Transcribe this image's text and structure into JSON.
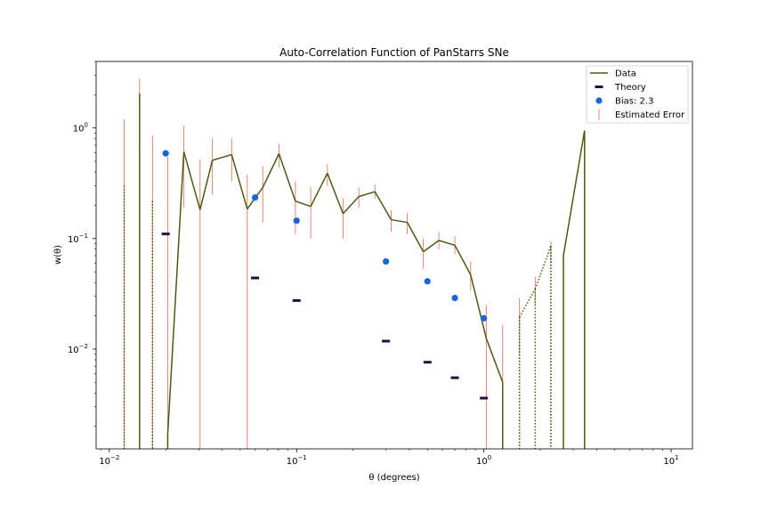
{
  "chart_data": {
    "type": "line",
    "title": "Auto-Correlation Function of PanStarrs SNe",
    "xlabel": "θ (degrees)",
    "ylabel": "w(θ)",
    "xscale": "log",
    "yscale": "log",
    "xlim": [
      0.0085,
      13.0
    ],
    "ylim": [
      0.00125,
      4.0
    ],
    "x_ticks": [
      {
        "value": 0.01,
        "base": "10",
        "exp": "−2"
      },
      {
        "value": 0.1,
        "base": "10",
        "exp": "−1"
      },
      {
        "value": 1,
        "base": "10",
        "exp": "0"
      },
      {
        "value": 10,
        "base": "10",
        "exp": "1"
      }
    ],
    "y_ticks": [
      {
        "value": 0.01,
        "base": "10",
        "exp": "−2"
      },
      {
        "value": 0.1,
        "base": "10",
        "exp": "−1"
      },
      {
        "value": 1,
        "base": "10",
        "exp": "0"
      }
    ],
    "legend": {
      "position": "top-right",
      "entries": [
        {
          "label": "Data",
          "marker": "line",
          "color": "#4a5a12"
        },
        {
          "label": "Theory",
          "marker": "dash",
          "color": "#2a0840"
        },
        {
          "label": "Bias: 2.3",
          "marker": "circle",
          "color": "#1565e0"
        },
        {
          "label": "Estimated Error",
          "marker": "vline",
          "color": "#e07868"
        }
      ]
    },
    "series": [
      {
        "name": "Data",
        "color": "#4a5a12",
        "points": [
          {
            "x": 0.012,
            "y": 0.3,
            "style": "dotted"
          },
          {
            "x": 0.0145,
            "y": 2.05,
            "style": "solid"
          },
          {
            "x": 0.017,
            "y": 0.22,
            "style": "dotted"
          },
          {
            "x": 0.0205,
            "y": 0.0017
          },
          {
            "x": 0.025,
            "y": 0.61
          },
          {
            "x": 0.0305,
            "y": 0.182
          },
          {
            "x": 0.0355,
            "y": 0.51
          },
          {
            "x": 0.045,
            "y": 0.575
          },
          {
            "x": 0.0545,
            "y": 0.185
          },
          {
            "x": 0.066,
            "y": 0.29
          },
          {
            "x": 0.0805,
            "y": 0.585
          },
          {
            "x": 0.0985,
            "y": 0.218
          },
          {
            "x": 0.119,
            "y": 0.195
          },
          {
            "x": 0.146,
            "y": 0.39
          },
          {
            "x": 0.177,
            "y": 0.168
          },
          {
            "x": 0.215,
            "y": 0.24
          },
          {
            "x": 0.262,
            "y": 0.265
          },
          {
            "x": 0.32,
            "y": 0.148
          },
          {
            "x": 0.39,
            "y": 0.14
          },
          {
            "x": 0.475,
            "y": 0.076
          },
          {
            "x": 0.575,
            "y": 0.096
          },
          {
            "x": 0.7,
            "y": 0.087
          },
          {
            "x": 0.85,
            "y": 0.047
          },
          {
            "x": 1.03,
            "y": 0.0125
          },
          {
            "x": 1.26,
            "y": 0.005
          },
          {
            "x": 1.55,
            "y": 0.0195,
            "style": "dotted"
          },
          {
            "x": 1.88,
            "y": 0.035,
            "style": "dotted"
          },
          {
            "x": 2.28,
            "y": 0.086,
            "style": "dotted"
          },
          {
            "x": 2.66,
            "y": 0.07
          },
          {
            "x": 3.45,
            "y": 0.95
          }
        ]
      },
      {
        "name": "Theory",
        "color": "#2a0840",
        "points": [
          {
            "x": 0.02,
            "y": 0.11
          },
          {
            "x": 0.06,
            "y": 0.044
          },
          {
            "x": 0.1,
            "y": 0.0275
          },
          {
            "x": 0.3,
            "y": 0.0118
          },
          {
            "x": 0.5,
            "y": 0.0076
          },
          {
            "x": 0.7,
            "y": 0.0055
          },
          {
            "x": 1.0,
            "y": 0.0036
          }
        ]
      },
      {
        "name": "Bias: 2.3",
        "color": "#1565e0",
        "points": [
          {
            "x": 0.02,
            "y": 0.59
          },
          {
            "x": 0.06,
            "y": 0.235
          },
          {
            "x": 0.1,
            "y": 0.145
          },
          {
            "x": 0.3,
            "y": 0.062
          },
          {
            "x": 0.5,
            "y": 0.041
          },
          {
            "x": 0.7,
            "y": 0.029
          },
          {
            "x": 1.0,
            "y": 0.019
          }
        ]
      }
    ],
    "error_bars": [
      {
        "x": 0.012,
        "low": 0.0011,
        "high": 1.2
      },
      {
        "x": 0.0145,
        "low": 0.6,
        "high": 2.8
      },
      {
        "x": 0.017,
        "low": 0.0011,
        "high": 0.85
      },
      {
        "x": 0.0205,
        "low": 0.0011,
        "high": 0.55
      },
      {
        "x": 0.025,
        "low": 0.19,
        "high": 1.05
      },
      {
        "x": 0.0305,
        "low": 0.0011,
        "high": 0.52
      },
      {
        "x": 0.0355,
        "low": 0.25,
        "high": 0.8
      },
      {
        "x": 0.045,
        "low": 0.33,
        "high": 0.8
      },
      {
        "x": 0.0545,
        "low": 0.0011,
        "high": 0.38
      },
      {
        "x": 0.066,
        "low": 0.14,
        "high": 0.45
      },
      {
        "x": 0.0805,
        "low": 0.44,
        "high": 0.72
      },
      {
        "x": 0.0985,
        "low": 0.11,
        "high": 0.33
      },
      {
        "x": 0.119,
        "low": 0.1,
        "high": 0.29
      },
      {
        "x": 0.146,
        "low": 0.3,
        "high": 0.47
      },
      {
        "x": 0.177,
        "low": 0.1,
        "high": 0.23
      },
      {
        "x": 0.215,
        "low": 0.19,
        "high": 0.29
      },
      {
        "x": 0.262,
        "low": 0.23,
        "high": 0.31
      },
      {
        "x": 0.32,
        "low": 0.115,
        "high": 0.18
      },
      {
        "x": 0.39,
        "low": 0.11,
        "high": 0.17
      },
      {
        "x": 0.475,
        "low": 0.054,
        "high": 0.1
      },
      {
        "x": 0.575,
        "low": 0.08,
        "high": 0.115
      },
      {
        "x": 0.7,
        "low": 0.072,
        "high": 0.105
      },
      {
        "x": 0.85,
        "low": 0.034,
        "high": 0.062
      },
      {
        "x": 1.03,
        "low": 0.0011,
        "high": 0.025
      },
      {
        "x": 1.26,
        "low": 0.0011,
        "high": 0.0165
      },
      {
        "x": 1.55,
        "low": 0.009,
        "high": 0.029
      },
      {
        "x": 1.88,
        "low": 0.025,
        "high": 0.045
      },
      {
        "x": 2.28,
        "low": 0.06,
        "high": 0.095
      },
      {
        "x": 2.66,
        "low": 0.055,
        "high": 0.075
      }
    ]
  }
}
